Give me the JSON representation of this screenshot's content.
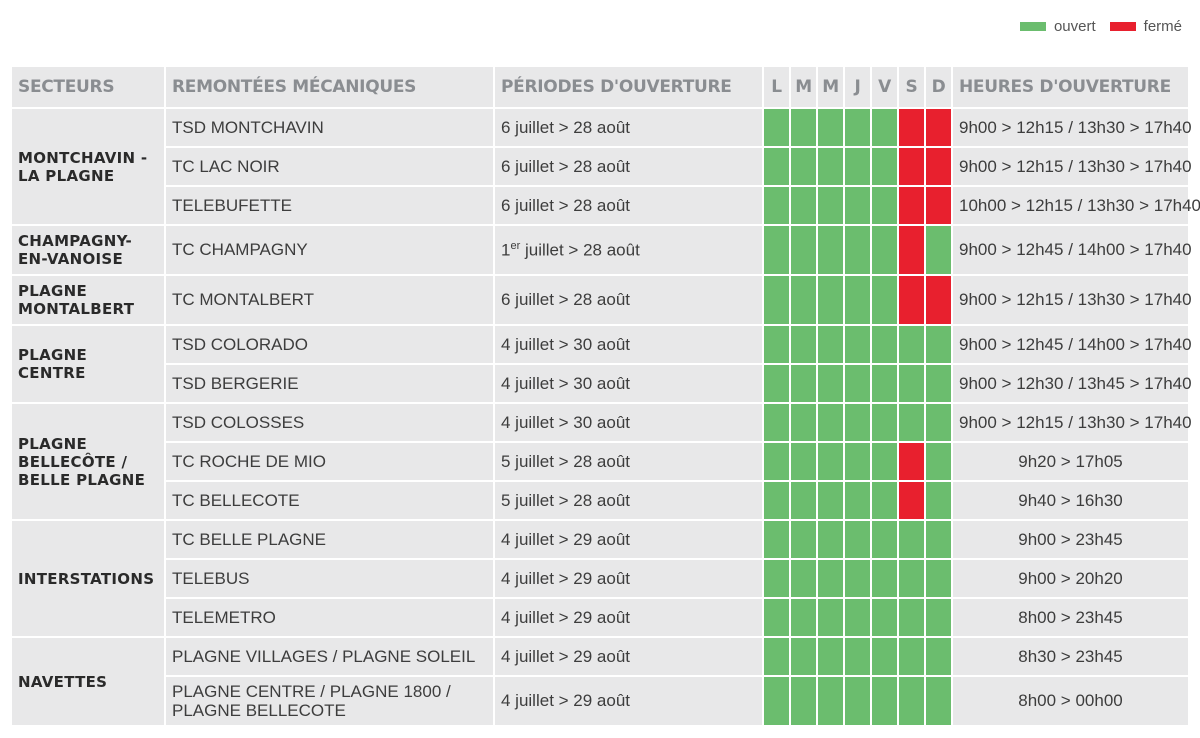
{
  "legend": {
    "open_label": "ouvert",
    "closed_label": "fermé",
    "open_color": "#6bbd6e",
    "closed_color": "#e8202e"
  },
  "headers": {
    "sector": "Secteurs",
    "lift": "Remontées mécaniques",
    "period": "Périodes d'ouverture",
    "days": [
      "L",
      "M",
      "M",
      "J",
      "V",
      "S",
      "D"
    ],
    "hours": "Heures d'ouverture"
  },
  "sectors": [
    {
      "name": "Montchavin - La Plagne"
    },
    {
      "name": "Champagny-en-Vanoise"
    },
    {
      "name": "Plagne Montalbert"
    },
    {
      "name": "Plagne Centre"
    },
    {
      "name": "Plagne Bellecôte / Belle Plagne"
    },
    {
      "name": "Interstations"
    },
    {
      "name": "Navettes"
    }
  ],
  "rows": [
    {
      "lift": "TSD MONTCHAVIN",
      "period": "6 juillet > 28 août",
      "hours": "9h00 > 12h15 / 13h30 > 17h40",
      "days": "ooooocc"
    },
    {
      "lift": "TC LAC NOIR",
      "period": "6 juillet > 28 août",
      "hours": "9h00 > 12h15 / 13h30 > 17h40",
      "days": "ooooocc"
    },
    {
      "lift": "TELEBUFETTE",
      "period": "6 juillet > 28 août",
      "hours": "10h00 > 12h15 / 13h30 > 17h40",
      "days": "ooooocc"
    },
    {
      "lift": "TC CHAMPAGNY",
      "period_sup": "er",
      "period_pre": "1",
      "period_post": " juillet > 28 août",
      "hours": "9h00 > 12h45 / 14h00 > 17h40",
      "days": "oooooco"
    },
    {
      "lift": "TC MONTALBERT",
      "period": "6 juillet > 28 août",
      "hours": "9h00 > 12h15 / 13h30 > 17h40",
      "days": "ooooocc"
    },
    {
      "lift": "TSD COLORADO",
      "period": "4 juillet > 30 août",
      "hours": "9h00 > 12h45 / 14h00 > 17h40",
      "days": "ooooooo"
    },
    {
      "lift": "TSD BERGERIE",
      "period": "4 juillet > 30 août",
      "hours": "9h00 > 12h30 / 13h45 > 17h40",
      "days": "ooooooo"
    },
    {
      "lift": "TSD COLOSSES",
      "period": "4 juillet > 30 août",
      "hours": "9h00 > 12h15 / 13h30 > 17h40",
      "days": "ooooooo"
    },
    {
      "lift": "TC ROCHE DE MIO",
      "period": "5 juillet > 28 août",
      "hours": "9h20 > 17h05",
      "days": "oooooco"
    },
    {
      "lift": "TC BELLECOTE",
      "period": "5 juillet > 28 août",
      "hours": "9h40 > 16h30",
      "days": "oooooco"
    },
    {
      "lift": "TC BELLE PLAGNE",
      "period": "4 juillet > 29 août",
      "hours": "9h00 > 23h45",
      "days": "ooooooo"
    },
    {
      "lift": "TELEBUS",
      "period": "4 juillet > 29 août",
      "hours": "9h00  > 20h20",
      "days": "ooooooo"
    },
    {
      "lift": "TELEMETRO",
      "period": "4 juillet > 29 août",
      "hours": "8h00 > 23h45",
      "days": "ooooooo"
    },
    {
      "lift": "PLAGNE VILLAGES / PLAGNE SOLEIL",
      "period": "4 juillet > 29 août",
      "hours": "8h30 > 23h45",
      "days": "ooooooo"
    },
    {
      "lift": "PLAGNE CENTRE / PLAGNE 1800 / PLAGNE BELLECOTE",
      "period": "4 juillet > 29 août",
      "hours": "8h00 > 00h00",
      "days": "ooooooo"
    }
  ]
}
